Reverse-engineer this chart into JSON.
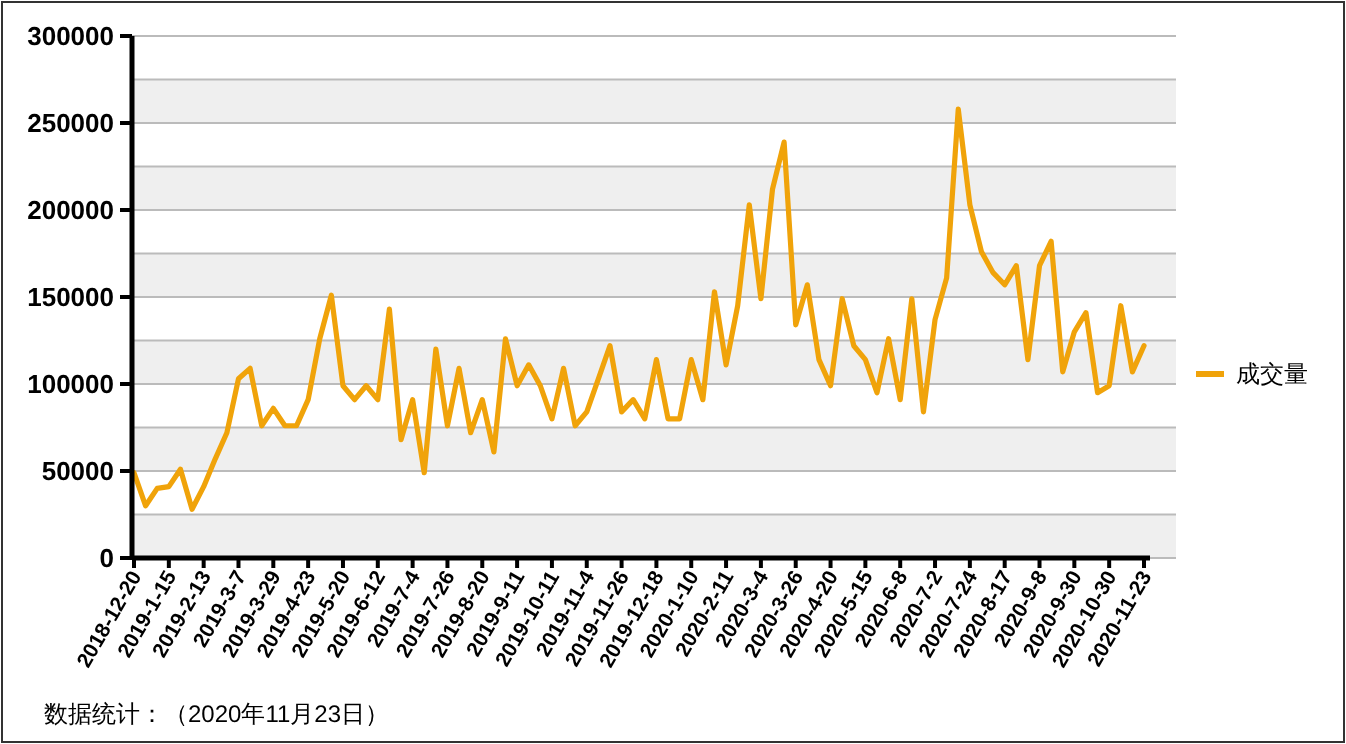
{
  "chart_data": {
    "type": "line",
    "categories": [
      "2018-12-20",
      null,
      null,
      "2019-1-15",
      null,
      null,
      "2019-2-13",
      null,
      null,
      "2019-3-7",
      null,
      null,
      "2019-3-29",
      null,
      null,
      "2019-4-23",
      null,
      null,
      "2019-5-20",
      null,
      null,
      "2019-6-12",
      null,
      null,
      "2019-7-4",
      null,
      null,
      "2019-7-26",
      null,
      null,
      "2019-8-20",
      null,
      null,
      "2019-9-11",
      null,
      null,
      "2019-10-11",
      null,
      null,
      "2019-11-4",
      null,
      null,
      "2019-11-26",
      null,
      null,
      "2019-12-18",
      null,
      null,
      "2020-1-10",
      null,
      null,
      "2020-2-11",
      null,
      null,
      "2020-3-4",
      null,
      null,
      "2020-3-26",
      null,
      null,
      "2020-4-20",
      null,
      null,
      "2020-5-15",
      null,
      null,
      "2020-6-8",
      null,
      null,
      "2020-7-2",
      null,
      null,
      "2020-7-24",
      null,
      null,
      "2020-8-17",
      null,
      null,
      "2020-9-8",
      null,
      null,
      "2020-9-30",
      null,
      null,
      "2020-10-30",
      null,
      null,
      "2020-11-23"
    ],
    "series": [
      {
        "name": "成交量",
        "color": "#f0a30a",
        "values": [
          49000,
          30000,
          40000,
          41000,
          51000,
          28000,
          41000,
          57000,
          72000,
          103000,
          109000,
          76000,
          86000,
          76000,
          76000,
          91000,
          126000,
          151000,
          99000,
          91000,
          99000,
          91000,
          143000,
          68000,
          91000,
          49000,
          120000,
          76000,
          109000,
          72000,
          91000,
          61000,
          126000,
          99000,
          111000,
          99000,
          80000,
          109000,
          76000,
          84000,
          103000,
          122000,
          84000,
          91000,
          80000,
          114000,
          80000,
          80000,
          114000,
          91000,
          153000,
          111000,
          145000,
          203000,
          149000,
          212000,
          239000,
          134000,
          157000,
          114000,
          99000,
          149000,
          122000,
          114000,
          95000,
          126000,
          91000,
          149000,
          84000,
          137000,
          161000,
          258000,
          203000,
          176000,
          164000,
          157000,
          168000,
          114000,
          168000,
          182000,
          107000,
          130000,
          141000,
          95000,
          99000,
          145000,
          107000,
          122000
        ]
      }
    ],
    "ylim": [
      0,
      300000
    ],
    "yticks": [
      0,
      {
        "value": 25000,
        "label": null
      },
      50000,
      {
        "value": 75000,
        "label": null
      },
      100000,
      {
        "value": 125000,
        "label": null
      },
      150000,
      {
        "value": 175000,
        "label": null
      },
      200000,
      {
        "value": 225000,
        "label": null
      },
      250000,
      {
        "value": 275000,
        "label": null
      },
      300000
    ],
    "grid": "y",
    "legend": "right",
    "marker": "none",
    "line_style": "solid",
    "annotations": [
      "数据统计：（2020年11月23日）"
    ]
  }
}
